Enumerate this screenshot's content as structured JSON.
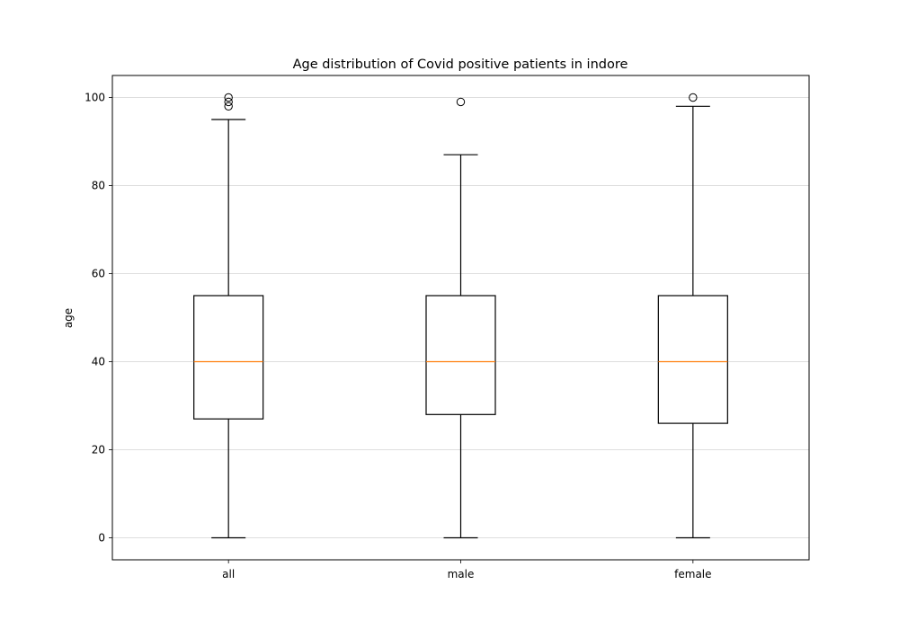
{
  "chart_data": {
    "type": "box",
    "title": "Age distribution of Covid positive patients in indore",
    "xlabel": "",
    "ylabel": "age",
    "ylim": [
      -5,
      105
    ],
    "yticks": [
      0,
      20,
      40,
      60,
      80,
      100
    ],
    "grid": "y",
    "categories": [
      "all",
      "male",
      "female"
    ],
    "boxes": [
      {
        "label": "all",
        "whisker_low": 0,
        "q1": 27,
        "median": 40,
        "q3": 55,
        "whisker_high": 95,
        "outliers": [
          98,
          99,
          100
        ]
      },
      {
        "label": "male",
        "whisker_low": 0,
        "q1": 28,
        "median": 40,
        "q3": 55,
        "whisker_high": 87,
        "outliers": [
          99
        ]
      },
      {
        "label": "female",
        "whisker_low": 0,
        "q1": 26,
        "median": 40,
        "q3": 55,
        "whisker_high": 98,
        "outliers": [
          100
        ]
      }
    ],
    "colors": {
      "box": "#000000",
      "median": "#ff7f0e",
      "grid": "#d3d3d3"
    }
  }
}
